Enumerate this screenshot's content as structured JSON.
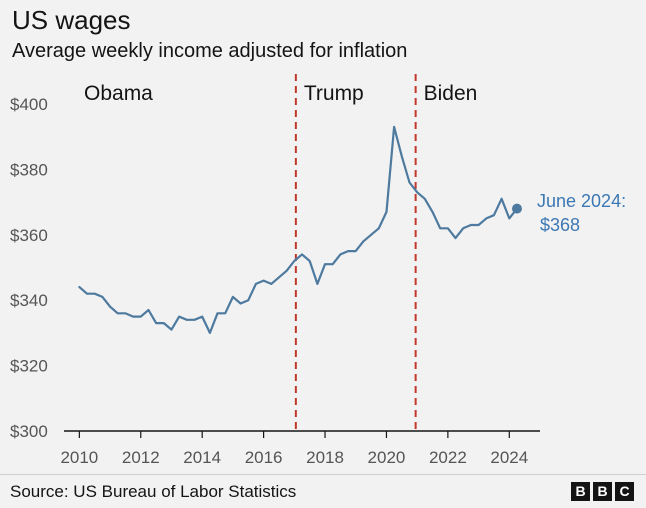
{
  "header": {
    "title": "US wages",
    "subtitle": "Average weekly income adjusted for inflation"
  },
  "footer": {
    "source": "Source: US Bureau of Labor Statistics",
    "logo_letters": [
      "B",
      "B",
      "C"
    ]
  },
  "colors": {
    "line": "#4d7a9e",
    "annotation": "#3b78b4",
    "divider": "#c0392b",
    "axis": "#141414",
    "tick_text": "#555555"
  },
  "chart_data": {
    "type": "line",
    "xlabel": "",
    "ylabel": "",
    "xlim": [
      2009.5,
      2025
    ],
    "ylim": [
      300,
      400
    ],
    "xticks": [
      2010,
      2012,
      2014,
      2016,
      2018,
      2020,
      2022,
      2024
    ],
    "yticks": [
      300,
      320,
      340,
      360,
      380,
      400
    ],
    "ytick_labels": [
      "$300",
      "$320",
      "$340",
      "$360",
      "$380",
      "$400"
    ],
    "grid": false,
    "series": [
      {
        "values": [
          [
            2010.0,
            344
          ],
          [
            2010.25,
            342
          ],
          [
            2010.5,
            342
          ],
          [
            2010.75,
            341
          ],
          [
            2011.0,
            338
          ],
          [
            2011.25,
            336
          ],
          [
            2011.5,
            336
          ],
          [
            2011.75,
            335
          ],
          [
            2012.0,
            335
          ],
          [
            2012.25,
            337
          ],
          [
            2012.5,
            333
          ],
          [
            2012.75,
            333
          ],
          [
            2013.0,
            331
          ],
          [
            2013.25,
            335
          ],
          [
            2013.5,
            334
          ],
          [
            2013.75,
            334
          ],
          [
            2014.0,
            335
          ],
          [
            2014.25,
            330
          ],
          [
            2014.5,
            336
          ],
          [
            2014.75,
            336
          ],
          [
            2015.0,
            341
          ],
          [
            2015.25,
            339
          ],
          [
            2015.5,
            340
          ],
          [
            2015.75,
            345
          ],
          [
            2016.0,
            346
          ],
          [
            2016.25,
            345
          ],
          [
            2016.5,
            347
          ],
          [
            2016.75,
            349
          ],
          [
            2017.0,
            352
          ],
          [
            2017.25,
            354
          ],
          [
            2017.5,
            352
          ],
          [
            2017.75,
            345
          ],
          [
            2018.0,
            351
          ],
          [
            2018.25,
            351
          ],
          [
            2018.5,
            354
          ],
          [
            2018.75,
            355
          ],
          [
            2019.0,
            355
          ],
          [
            2019.25,
            358
          ],
          [
            2019.5,
            360
          ],
          [
            2019.75,
            362
          ],
          [
            2020.0,
            367
          ],
          [
            2020.25,
            393
          ],
          [
            2020.5,
            384
          ],
          [
            2020.75,
            376
          ],
          [
            2021.0,
            373
          ],
          [
            2021.25,
            371
          ],
          [
            2021.5,
            367
          ],
          [
            2021.75,
            362
          ],
          [
            2022.0,
            362
          ],
          [
            2022.25,
            359
          ],
          [
            2022.5,
            362
          ],
          [
            2022.75,
            363
          ],
          [
            2023.0,
            363
          ],
          [
            2023.25,
            365
          ],
          [
            2023.5,
            366
          ],
          [
            2023.75,
            371
          ],
          [
            2024.0,
            365
          ],
          [
            2024.25,
            368
          ]
        ]
      }
    ],
    "endpoint": {
      "x": 2024.25,
      "y": 368,
      "label_line1": "June 2024:",
      "label_line2": "$368"
    },
    "eras": [
      {
        "label": "Obama",
        "start": 2009.5,
        "end": 2017.05
      },
      {
        "label": "Trump",
        "start": 2017.05,
        "end": 2020.95
      },
      {
        "label": "Biden",
        "start": 2020.95,
        "end": 2025
      }
    ],
    "dividers": [
      2017.05,
      2020.95
    ]
  }
}
